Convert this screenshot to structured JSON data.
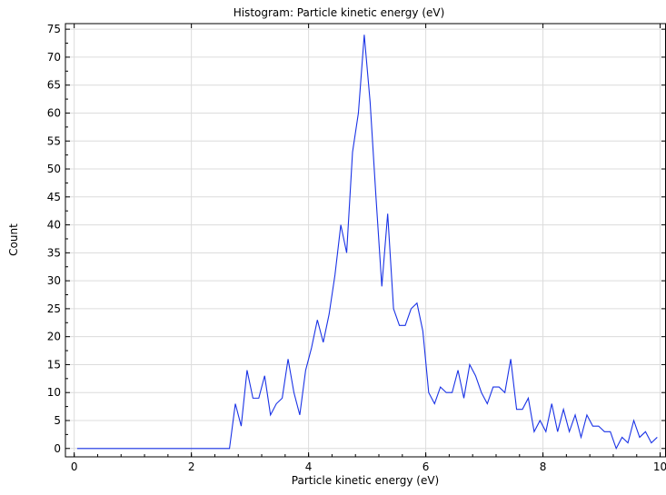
{
  "chart_data": {
    "type": "line",
    "title": "Histogram: Particle kinetic energy (eV)",
    "xlabel": "Particle kinetic energy (eV)",
    "ylabel": "Count",
    "xlim": [
      -0.15,
      10.1
    ],
    "ylim": [
      -1.5,
      76
    ],
    "x_ticks": [
      0,
      2,
      4,
      6,
      8,
      10
    ],
    "y_ticks": [
      0,
      5,
      10,
      15,
      20,
      25,
      30,
      35,
      40,
      45,
      50,
      55,
      60,
      65,
      70,
      75
    ],
    "grid": true,
    "series": [
      {
        "color": "#1a33e6",
        "x": [
          0.05,
          0.15,
          0.25,
          0.35,
          0.45,
          0.55,
          0.65,
          0.75,
          0.85,
          0.95,
          1.05,
          1.15,
          1.25,
          1.35,
          1.45,
          1.55,
          1.65,
          1.75,
          1.85,
          1.95,
          2.05,
          2.15,
          2.25,
          2.35,
          2.45,
          2.55,
          2.65,
          2.75,
          2.85,
          2.95,
          3.05,
          3.15,
          3.25,
          3.35,
          3.45,
          3.55,
          3.65,
          3.75,
          3.85,
          3.95,
          4.05,
          4.15,
          4.25,
          4.35,
          4.45,
          4.55,
          4.65,
          4.75,
          4.85,
          4.95,
          5.05,
          5.15,
          5.25,
          5.35,
          5.45,
          5.55,
          5.65,
          5.75,
          5.85,
          5.95,
          6.05,
          6.15,
          6.25,
          6.35,
          6.45,
          6.55,
          6.65,
          6.75,
          6.85,
          6.95,
          7.05,
          7.15,
          7.25,
          7.35,
          7.45,
          7.55,
          7.65,
          7.75,
          7.85,
          7.95,
          8.05,
          8.15,
          8.25,
          8.35,
          8.45,
          8.55,
          8.65,
          8.75,
          8.85,
          8.95,
          9.05,
          9.15,
          9.25,
          9.35,
          9.45,
          9.55,
          9.65,
          9.75,
          9.85,
          9.95
        ],
        "y": [
          0,
          0,
          0,
          0,
          0,
          0,
          0,
          0,
          0,
          0,
          0,
          0,
          0,
          0,
          0,
          0,
          0,
          0,
          0,
          0,
          0,
          0,
          0,
          0,
          0,
          0,
          0,
          8,
          4,
          14,
          9,
          9,
          13,
          6,
          8,
          9,
          16,
          10,
          6,
          14,
          18,
          23,
          19,
          24,
          31,
          40,
          35,
          53,
          60,
          74,
          62,
          45,
          29,
          42,
          25,
          22,
          22,
          25,
          26,
          21,
          10,
          8,
          11,
          10,
          10,
          14,
          9,
          15,
          13,
          10,
          8,
          11,
          11,
          10,
          16,
          7,
          7,
          9,
          3,
          5,
          3,
          8,
          3,
          7,
          3,
          6,
          2,
          6,
          4,
          4,
          3,
          3,
          0,
          2,
          1,
          5,
          2,
          3,
          1,
          2
        ]
      }
    ]
  }
}
